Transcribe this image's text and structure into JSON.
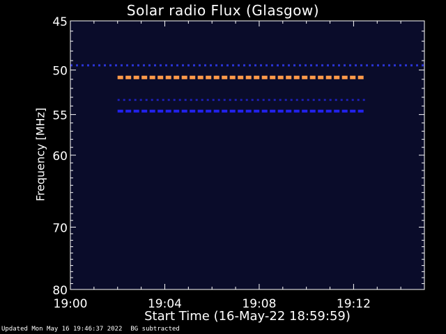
{
  "chart_data": {
    "type": "heatmap",
    "title": "Solar radio Flux (Glasgow)",
    "xlabel": "Start Time (16-May-22 18:59:59)",
    "ylabel": "Frequency [MHz]",
    "x_ticks": [
      "19:00",
      "19:04",
      "19:08",
      "19:12"
    ],
    "y_ticks": [
      45,
      50,
      55,
      60,
      70,
      80
    ],
    "y_scale": "log",
    "xlim": [
      "19:00",
      "19:15"
    ],
    "ylim": [
      80,
      45
    ],
    "background_color": "#0a0c2a",
    "features": [
      {
        "kind": "dashed_band",
        "freq_mhz": 49.5,
        "t_start": "19:00",
        "t_end": "19:15",
        "color": "#2a34d8",
        "intensity": "low"
      },
      {
        "kind": "dashed_band",
        "freq_mhz": 50.8,
        "t_start": "19:02",
        "t_end": "19:12.5",
        "color": "#ff9a4a",
        "intensity": "high"
      },
      {
        "kind": "dashed_band",
        "freq_mhz": 53.3,
        "t_start": "19:02",
        "t_end": "19:12.5",
        "color": "#1d1fb0",
        "intensity": "low"
      },
      {
        "kind": "dashed_band",
        "freq_mhz": 54.6,
        "t_start": "19:02",
        "t_end": "19:12.5",
        "color": "#2222ee",
        "intensity": "medium"
      }
    ]
  },
  "footer": {
    "updated": "Updated Mon May 16 19:46:37 2022",
    "note": "BG subtracted"
  }
}
